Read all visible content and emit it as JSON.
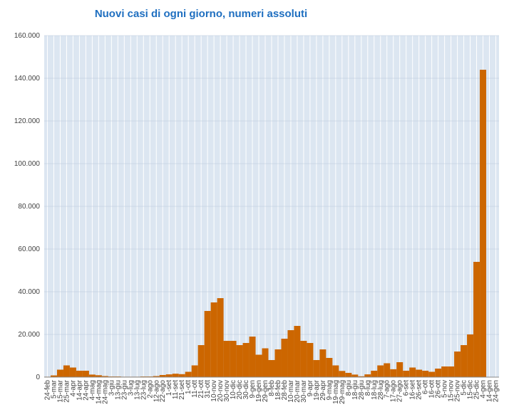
{
  "chart_data": {
    "type": "bar",
    "title": "Nuovi casi di ogni giorno, numeri assoluti",
    "categories": [
      "24-feb",
      "5-mar",
      "15-mar",
      "25-mar",
      "4-apr",
      "14-apr",
      "24-apr",
      "4-mag",
      "14-mag",
      "24-mag",
      "3-giu",
      "13-giu",
      "23-giu",
      "3-lug",
      "13-lug",
      "23-lug",
      "2-ago",
      "12-ago",
      "22-ago",
      "1-set",
      "11-set",
      "21-set",
      "1-ott",
      "11-ott",
      "21-ott",
      "31-ott",
      "10-nov",
      "20-nov",
      "30-nov",
      "10-dic",
      "20-dic",
      "30-dic",
      "9-gen",
      "19-gen",
      "29-gen",
      "8-feb",
      "18-feb",
      "28-feb",
      "10-mar",
      "20-mar",
      "30-mar",
      "9-apr",
      "19-apr",
      "29-apr",
      "9-mag",
      "19-mag",
      "29-mag",
      "8-giu",
      "18-giu",
      "28-giu",
      "8-lug",
      "18-lug",
      "28-lug",
      "7-ago",
      "17-ago",
      "27-ago",
      "6-set",
      "16-set",
      "26-set",
      "6-ott",
      "16-ott",
      "26-ott",
      "5-nov",
      "15-nov",
      "25-nov",
      "5-dic",
      "15-dic",
      "25-dic",
      "4-gen",
      "14-gen",
      "24-gen"
    ],
    "values": [
      200,
      800,
      3500,
      5500,
      4500,
      3000,
      3000,
      1200,
      900,
      500,
      300,
      300,
      200,
      200,
      200,
      300,
      300,
      500,
      1000,
      1300,
      1600,
      1400,
      2500,
      5500,
      15000,
      31000,
      35000,
      37000,
      17000,
      17000,
      15000,
      16000,
      19000,
      10500,
      13500,
      8000,
      13000,
      18000,
      22000,
      24000,
      17000,
      16000,
      8000,
      13000,
      9000,
      5500,
      2900,
      2000,
      1200,
      400,
      1300,
      3000,
      5500,
      6500,
      3700,
      7000,
      3000,
      4500,
      3500,
      3000,
      2500,
      4000,
      5000,
      5000,
      12000,
      15000,
      20000,
      54000,
      144000,
      null,
      null
    ],
    "color": "#cc6600",
    "ylim": [
      0,
      160000
    ],
    "yticks": [
      {
        "value": 0,
        "label": "0"
      },
      {
        "value": 20000,
        "label": "20.000"
      },
      {
        "value": 40000,
        "label": "40.000"
      },
      {
        "value": 60000,
        "label": "60.000"
      },
      {
        "value": 80000,
        "label": "80.000"
      },
      {
        "value": 100000,
        "label": "100.000"
      },
      {
        "value": 120000,
        "label": "120.000"
      },
      {
        "value": 140000,
        "label": "140.000"
      },
      {
        "value": 160000,
        "label": "160.000"
      }
    ],
    "grid": true
  }
}
